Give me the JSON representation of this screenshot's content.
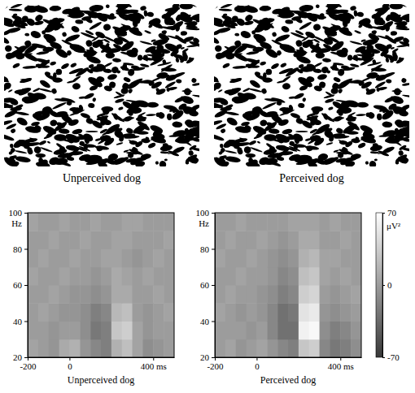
{
  "images": [
    {
      "caption": "Unperceived dog"
    },
    {
      "caption": "Perceived dog"
    }
  ],
  "colorbar": {
    "range": [
      -70,
      70
    ],
    "ticks": [
      -70,
      0,
      70
    ],
    "label": "μV²"
  },
  "chart_data": [
    {
      "type": "heatmap",
      "xlabel": "Unperceived dog",
      "ylabel": "Hz",
      "x_bins": [
        -200,
        -150,
        -100,
        -50,
        0,
        50,
        100,
        150,
        200,
        250,
        300,
        350,
        400,
        450,
        500
      ],
      "y_bins": [
        20,
        30,
        40,
        50,
        60,
        70,
        80,
        90,
        100
      ],
      "cells": [
        [
          5,
          0,
          -5,
          10,
          15,
          -5,
          -15,
          -20,
          15,
          25,
          5,
          -10,
          -5,
          0
        ],
        [
          0,
          0,
          -5,
          0,
          0,
          -10,
          -25,
          -20,
          30,
          35,
          5,
          -5,
          0,
          0
        ],
        [
          0,
          5,
          0,
          -5,
          -5,
          -10,
          -20,
          -15,
          20,
          25,
          0,
          -5,
          0,
          5
        ],
        [
          0,
          0,
          5,
          0,
          -5,
          -5,
          -10,
          -5,
          10,
          10,
          0,
          0,
          5,
          0
        ],
        [
          5,
          0,
          0,
          5,
          0,
          0,
          -5,
          0,
          10,
          5,
          0,
          5,
          0,
          0
        ],
        [
          0,
          5,
          0,
          0,
          5,
          0,
          0,
          5,
          5,
          0,
          -5,
          0,
          5,
          0
        ],
        [
          0,
          0,
          5,
          0,
          0,
          5,
          0,
          0,
          5,
          5,
          0,
          0,
          0,
          5
        ],
        [
          5,
          0,
          0,
          5,
          0,
          0,
          5,
          0,
          0,
          5,
          5,
          0,
          0,
          0
        ]
      ],
      "xlim": [
        -200,
        500
      ],
      "ylim": [
        20,
        100
      ],
      "xticks": [
        -200,
        0,
        {
          "value": 400,
          "label": "400 ms"
        }
      ],
      "yticks": [
        20,
        40,
        60,
        80,
        100
      ]
    },
    {
      "type": "heatmap",
      "xlabel": "Perceived dog",
      "ylabel": "Hz",
      "x_bins": [
        -200,
        -150,
        -100,
        -50,
        0,
        50,
        100,
        150,
        200,
        250,
        300,
        350,
        400,
        450,
        500
      ],
      "y_bins": [
        20,
        30,
        40,
        50,
        60,
        70,
        80,
        90,
        100
      ],
      "cells": [
        [
          0,
          5,
          -5,
          0,
          5,
          -5,
          -15,
          -20,
          30,
          35,
          -15,
          -25,
          -20,
          -10
        ],
        [
          0,
          0,
          0,
          -5,
          0,
          -15,
          -30,
          -30,
          60,
          65,
          -10,
          -20,
          -15,
          -5
        ],
        [
          5,
          0,
          -5,
          0,
          -5,
          -15,
          -30,
          -25,
          50,
          55,
          -5,
          -10,
          -5,
          0
        ],
        [
          0,
          5,
          0,
          0,
          -5,
          -10,
          -20,
          -15,
          35,
          40,
          0,
          -5,
          0,
          5
        ],
        [
          0,
          0,
          5,
          0,
          0,
          -5,
          -15,
          -10,
          25,
          30,
          5,
          0,
          5,
          0
        ],
        [
          5,
          0,
          0,
          5,
          0,
          -5,
          -10,
          -5,
          15,
          20,
          5,
          5,
          0,
          0
        ],
        [
          0,
          5,
          0,
          0,
          5,
          0,
          -5,
          0,
          10,
          10,
          0,
          0,
          5,
          0
        ],
        [
          0,
          0,
          5,
          0,
          0,
          0,
          0,
          5,
          5,
          5,
          0,
          5,
          0,
          0
        ]
      ],
      "xlim": [
        -200,
        500
      ],
      "ylim": [
        20,
        100
      ],
      "xticks": [
        -200,
        0,
        {
          "value": 400,
          "label": "400 ms"
        }
      ],
      "yticks": [
        20,
        40,
        60,
        80,
        100
      ]
    }
  ]
}
